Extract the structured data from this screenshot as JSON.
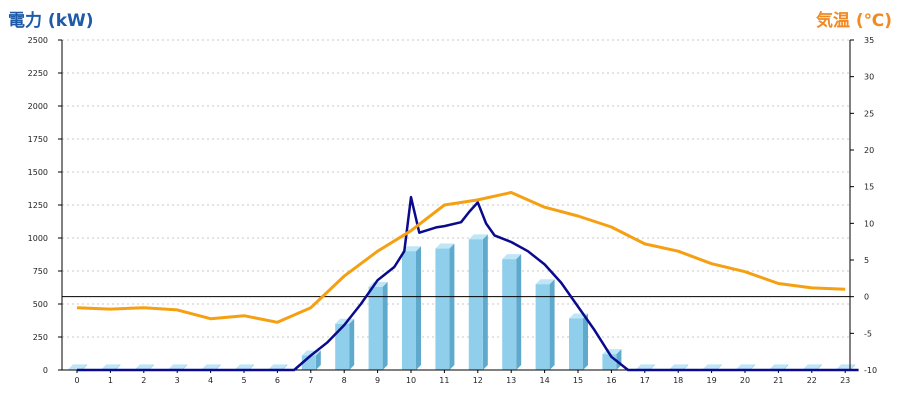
{
  "left_axis_title": "電力 (kW)",
  "right_axis_title": "気温 (℃)",
  "colors": {
    "left_title": "#1f5aa8",
    "right_title": "#f08a24",
    "bar_front": "#8fcfec",
    "bar_side": "#5ea9cc",
    "bar_top": "#bfe6f7",
    "power_line": "#0a0a8c",
    "temperature_line": "#f5a012",
    "grid": "#c8c8c8"
  },
  "chart_data": {
    "type": "bar",
    "categories": [
      "0",
      "1",
      "2",
      "3",
      "4",
      "5",
      "6",
      "7",
      "8",
      "9",
      "10",
      "11",
      "12",
      "13",
      "14",
      "15",
      "16",
      "17",
      "18",
      "19",
      "20",
      "21",
      "22",
      "23"
    ],
    "left_axis": {
      "min": 0,
      "max": 2500,
      "ticks": [
        "0",
        "250",
        "500",
        "750",
        "1000",
        "1250",
        "1500",
        "1750",
        "2000",
        "2250",
        "2500"
      ]
    },
    "right_axis": {
      "min": -10,
      "max": 35,
      "ticks": [
        "-10",
        "-5",
        "0",
        "5",
        "10",
        "15",
        "20",
        "25",
        "30",
        "35"
      ]
    },
    "grid": true,
    "series": [
      {
        "kind": "bar",
        "axis": "left",
        "values": [
          5,
          5,
          5,
          5,
          5,
          5,
          5,
          110,
          350,
          630,
          900,
          920,
          990,
          840,
          650,
          390,
          120,
          5,
          5,
          5,
          5,
          5,
          5,
          5
        ]
      },
      {
        "kind": "line",
        "axis": "left",
        "x": [
          0,
          6.5,
          7,
          7.5,
          8,
          8.5,
          9,
          9.5,
          9.8,
          10,
          10.25,
          10.5,
          10.75,
          11,
          11.5,
          11.75,
          12,
          12.25,
          12.5,
          13,
          13.5,
          14,
          14.5,
          15,
          15.5,
          16,
          16.5,
          17,
          23.4
        ],
        "values": [
          0,
          0,
          110,
          210,
          340,
          500,
          680,
          780,
          900,
          1310,
          1040,
          1060,
          1080,
          1090,
          1120,
          1200,
          1270,
          1110,
          1020,
          970,
          900,
          800,
          660,
          480,
          300,
          100,
          0,
          0,
          0
        ]
      },
      {
        "kind": "line",
        "axis": "right",
        "x": [
          0,
          1,
          2,
          3,
          4,
          5,
          6,
          7,
          8,
          9,
          10,
          11,
          12,
          13,
          14,
          15,
          16,
          17,
          18,
          19,
          20,
          21,
          22,
          23
        ],
        "values": [
          -1.5,
          -1.7,
          -1.5,
          -1.8,
          -3.0,
          -2.6,
          -3.5,
          -1.5,
          2.8,
          6.2,
          9.0,
          12.5,
          13.2,
          14.2,
          12.2,
          11.0,
          9.5,
          7.2,
          6.2,
          4.5,
          3.4,
          1.8,
          1.2,
          1.0
        ]
      }
    ]
  }
}
